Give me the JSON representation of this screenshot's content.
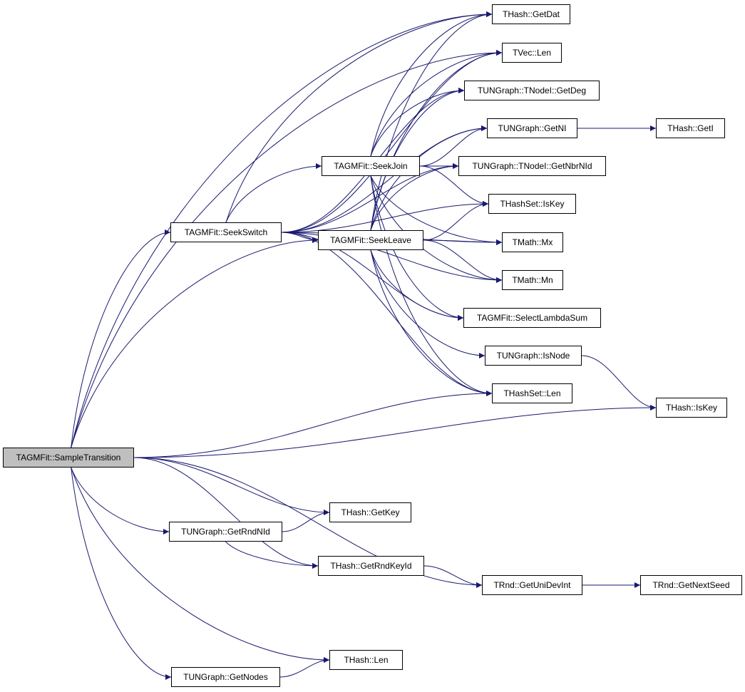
{
  "colors": {
    "edge": "#191970",
    "root_fill": "#bfbfbf",
    "node_fill": "#ffffff"
  },
  "root": "n17",
  "nodes": [
    {
      "id": "n1",
      "label": "THash::GetDat"
    },
    {
      "id": "n2",
      "label": "TVec::Len"
    },
    {
      "id": "n3",
      "label": "TUNGraph::TNodeI::GetDeg"
    },
    {
      "id": "n4",
      "label": "TUNGraph::GetNI"
    },
    {
      "id": "n5",
      "label": "THash::GetI"
    },
    {
      "id": "n6",
      "label": "TUNGraph::TNodeI::GetNbrNId"
    },
    {
      "id": "n7",
      "label": "TAGMFit::SeekJoin"
    },
    {
      "id": "n8",
      "label": "THashSet::IsKey"
    },
    {
      "id": "n9",
      "label": "TAGMFit::SeekSwitch"
    },
    {
      "id": "n10",
      "label": "TAGMFit::SeekLeave"
    },
    {
      "id": "n11",
      "label": "TMath::Mx"
    },
    {
      "id": "n12",
      "label": "TMath::Mn"
    },
    {
      "id": "n13",
      "label": "TAGMFit::SelectLambdaSum"
    },
    {
      "id": "n14",
      "label": "TUNGraph::IsNode"
    },
    {
      "id": "n15",
      "label": "THashSet::Len"
    },
    {
      "id": "n16",
      "label": "THash::IsKey"
    },
    {
      "id": "n17",
      "label": "TAGMFit::SampleTransition"
    },
    {
      "id": "n18",
      "label": "THash::GetKey"
    },
    {
      "id": "n19",
      "label": "TUNGraph::GetRndNId"
    },
    {
      "id": "n20",
      "label": "THash::GetRndKeyId"
    },
    {
      "id": "n21",
      "label": "TRnd::GetUniDevInt"
    },
    {
      "id": "n22",
      "label": "TRnd::GetNextSeed"
    },
    {
      "id": "n23",
      "label": "THash::Len"
    },
    {
      "id": "n24",
      "label": "TUNGraph::GetNodes"
    }
  ],
  "edges": [
    [
      "n17",
      "n1"
    ],
    [
      "n17",
      "n2"
    ],
    [
      "n17",
      "n9"
    ],
    [
      "n17",
      "n10"
    ],
    [
      "n17",
      "n15"
    ],
    [
      "n17",
      "n16"
    ],
    [
      "n17",
      "n18"
    ],
    [
      "n17",
      "n19"
    ],
    [
      "n17",
      "n20"
    ],
    [
      "n17",
      "n21"
    ],
    [
      "n17",
      "n23"
    ],
    [
      "n17",
      "n24"
    ],
    [
      "n9",
      "n1"
    ],
    [
      "n9",
      "n2"
    ],
    [
      "n9",
      "n3"
    ],
    [
      "n9",
      "n4"
    ],
    [
      "n9",
      "n6"
    ],
    [
      "n9",
      "n7"
    ],
    [
      "n9",
      "n10"
    ],
    [
      "n9",
      "n8"
    ],
    [
      "n9",
      "n11"
    ],
    [
      "n9",
      "n12"
    ],
    [
      "n9",
      "n13"
    ],
    [
      "n9",
      "n15"
    ],
    [
      "n7",
      "n1"
    ],
    [
      "n7",
      "n2"
    ],
    [
      "n7",
      "n3"
    ],
    [
      "n7",
      "n4"
    ],
    [
      "n7",
      "n6"
    ],
    [
      "n7",
      "n8"
    ],
    [
      "n7",
      "n11"
    ],
    [
      "n7",
      "n12"
    ],
    [
      "n7",
      "n13"
    ],
    [
      "n7",
      "n15"
    ],
    [
      "n10",
      "n1"
    ],
    [
      "n10",
      "n2"
    ],
    [
      "n10",
      "n3"
    ],
    [
      "n10",
      "n4"
    ],
    [
      "n10",
      "n6"
    ],
    [
      "n10",
      "n8"
    ],
    [
      "n10",
      "n11"
    ],
    [
      "n10",
      "n12"
    ],
    [
      "n10",
      "n13"
    ],
    [
      "n10",
      "n14"
    ],
    [
      "n10",
      "n15"
    ],
    [
      "n4",
      "n5"
    ],
    [
      "n14",
      "n16"
    ],
    [
      "n19",
      "n18"
    ],
    [
      "n19",
      "n20"
    ],
    [
      "n20",
      "n21"
    ],
    [
      "n21",
      "n22"
    ],
    [
      "n24",
      "n23"
    ]
  ]
}
